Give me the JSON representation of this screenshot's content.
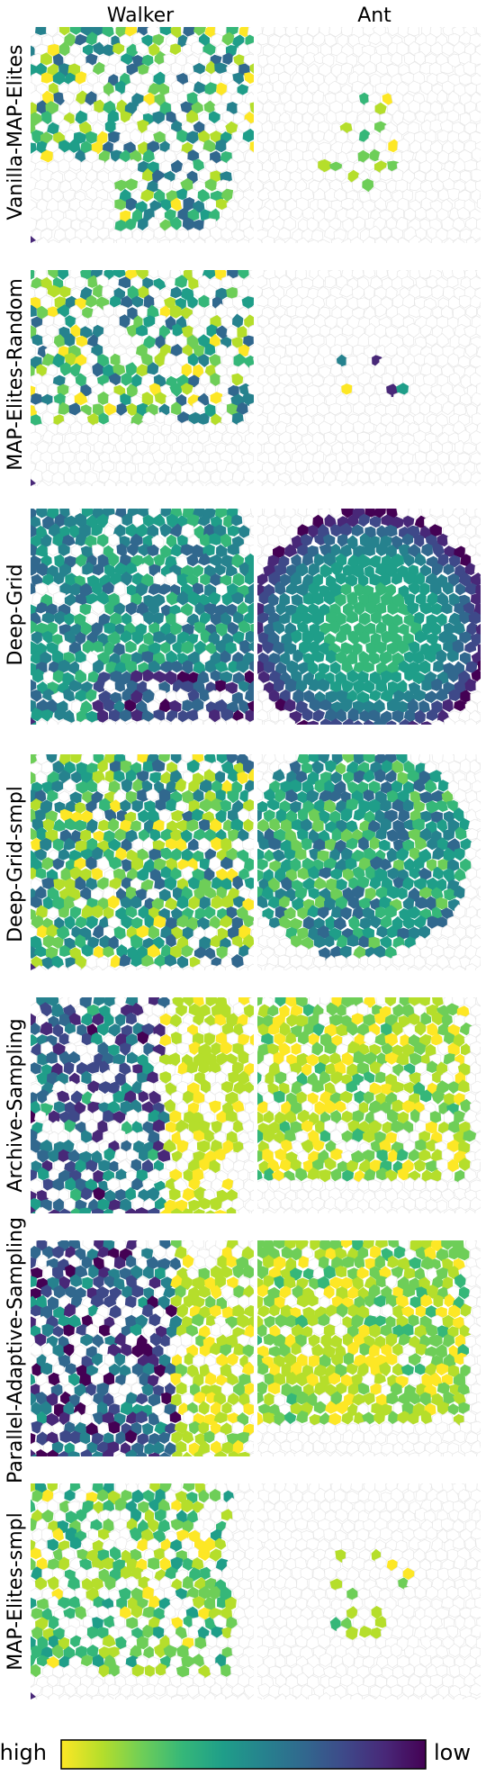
{
  "columns": [
    "Walker",
    "Ant"
  ],
  "rows": [
    "Vanilla-MAP-Elites",
    "MAP-Elites-Random",
    "Deep-Grid",
    "Deep-Grid-smpl",
    "Archive-Sampling",
    "Parallel-Adaptive-Sampling",
    "MAP-Elites-smpl"
  ],
  "colorbar": {
    "left_label": "high",
    "right_label": "low",
    "colormap": "viridis",
    "colors": [
      "#fde725",
      "#b5de2b",
      "#6ece58",
      "#35b779",
      "#1f9e89",
      "#26828e",
      "#31688e",
      "#3e4989",
      "#482878",
      "#440154"
    ]
  },
  "colors": {
    "empty_cell_fill": "#ffffff",
    "empty_cell_stroke": "#e6e6e6"
  },
  "chart_data": {
    "type": "heatmap",
    "description_of_axes": "",
    "panels": [
      {
        "row": "Vanilla-MAP-Elites",
        "column": "Walker",
        "coverage": 0.45,
        "mean_fitness": 0.6
      },
      {
        "row": "Vanilla-MAP-Elites",
        "column": "Ant",
        "coverage": 0.13,
        "mean_fitness": 0.85
      },
      {
        "row": "MAP-Elites-Random",
        "column": "Walker",
        "coverage": 0.5,
        "mean_fitness": 0.65
      },
      {
        "row": "MAP-Elites-Random",
        "column": "Ant",
        "coverage": 0.07,
        "mean_fitness": 0.5
      },
      {
        "row": "Deep-Grid",
        "column": "Walker",
        "coverage": 0.7,
        "mean_fitness": 0.45
      },
      {
        "row": "Deep-Grid",
        "column": "Ant",
        "coverage": 0.85,
        "mean_fitness": 0.5
      },
      {
        "row": "Deep-Grid-smpl",
        "column": "Walker",
        "coverage": 0.72,
        "mean_fitness": 0.55
      },
      {
        "row": "Deep-Grid-smpl",
        "column": "Ant",
        "coverage": 0.8,
        "mean_fitness": 0.6
      },
      {
        "row": "Archive-Sampling",
        "column": "Walker",
        "coverage": 0.55,
        "mean_fitness": 0.55
      },
      {
        "row": "Archive-Sampling",
        "column": "Ant",
        "coverage": 0.65,
        "mean_fitness": 0.9
      },
      {
        "row": "Parallel-Adaptive-Sampling",
        "column": "Walker",
        "coverage": 0.6,
        "mean_fitness": 0.45
      },
      {
        "row": "Parallel-Adaptive-Sampling",
        "column": "Ant",
        "coverage": 0.7,
        "mean_fitness": 0.9
      },
      {
        "row": "MAP-Elites-smpl",
        "column": "Walker",
        "coverage": 0.5,
        "mean_fitness": 0.8
      },
      {
        "row": "MAP-Elites-smpl",
        "column": "Ant",
        "coverage": 0.15,
        "mean_fitness": 0.9
      }
    ]
  }
}
